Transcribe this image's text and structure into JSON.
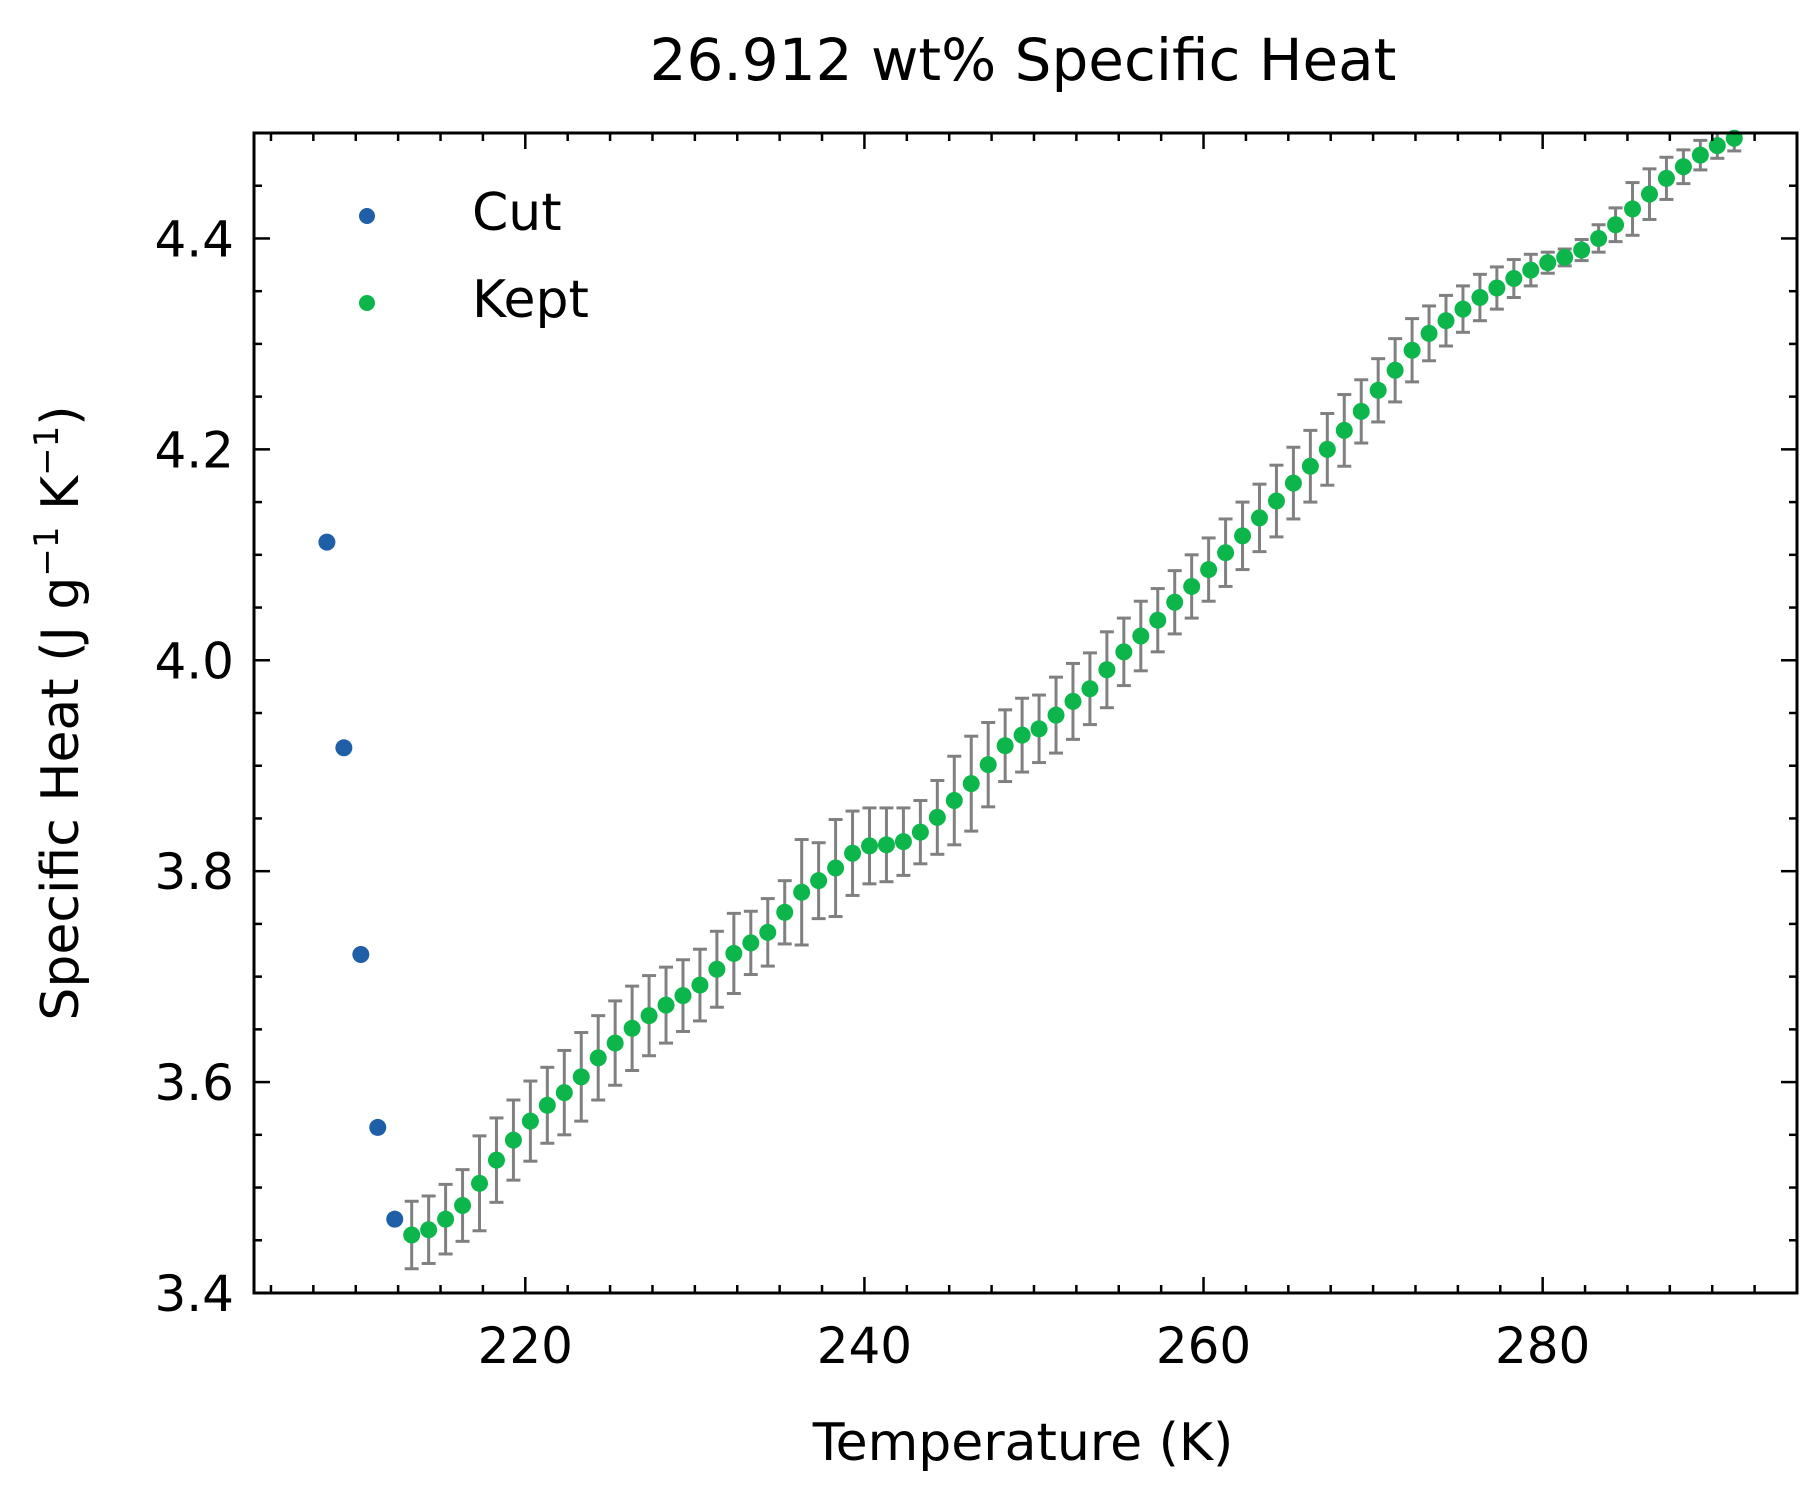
{
  "chart_data": {
    "type": "scatter",
    "title": "26.912 wt% Specific Heat",
    "xlabel": "Temperature (K)",
    "ylabel": {
      "base": "Specific Heat (J g",
      "sup1": "−1",
      "mid": " K",
      "sup2": "−1",
      "end": ")"
    },
    "xlim": [
      204,
      295
    ],
    "ylim": [
      3.4,
      4.5
    ],
    "xticks": [
      220,
      240,
      260,
      280
    ],
    "xtick_labels": [
      "220",
      "240",
      "260",
      "280"
    ],
    "yticks": [
      3.4,
      3.6,
      3.8,
      4.0,
      4.2,
      4.4
    ],
    "ytick_labels": [
      "3.4",
      "3.6",
      "3.8",
      "4.0",
      "4.2",
      "4.4"
    ],
    "legend_position": "top-left",
    "errorbar_color": "#808080",
    "series": [
      {
        "name": "Cut",
        "color": "#1f5fa8",
        "x": [
          208.3,
          209.3,
          210.3,
          211.3,
          212.3
        ],
        "y": [
          4.112,
          3.917,
          3.721,
          3.557,
          3.47
        ]
      },
      {
        "name": "Kept",
        "color": "#0cb64a",
        "x": [
          213.3,
          214.3,
          215.3,
          216.3,
          217.3,
          218.3,
          219.3,
          220.3,
          221.3,
          222.3,
          223.3,
          224.3,
          225.3,
          226.3,
          227.3,
          228.3,
          229.3,
          230.3,
          231.3,
          232.3,
          233.3,
          234.3,
          235.3,
          236.3,
          237.3,
          238.3,
          239.3,
          240.3,
          241.3,
          242.3,
          243.3,
          244.3,
          245.3,
          246.3,
          247.3,
          248.3,
          249.3,
          250.3,
          251.3,
          252.3,
          253.3,
          254.3,
          255.3,
          256.3,
          257.3,
          258.3,
          259.3,
          260.3,
          261.3,
          262.3,
          263.3,
          264.3,
          265.3,
          266.3,
          267.3,
          268.3,
          269.3,
          270.3,
          271.3,
          272.3,
          273.3,
          274.3,
          275.3,
          276.3,
          277.3,
          278.3,
          279.3,
          280.3,
          281.3,
          282.3,
          283.3,
          284.3,
          285.3,
          286.3,
          287.3,
          288.3,
          289.3,
          290.3,
          291.3
        ],
        "y": [
          3.455,
          3.46,
          3.47,
          3.483,
          3.504,
          3.526,
          3.545,
          3.563,
          3.578,
          3.59,
          3.605,
          3.623,
          3.637,
          3.651,
          3.663,
          3.673,
          3.682,
          3.692,
          3.707,
          3.722,
          3.732,
          3.742,
          3.761,
          3.78,
          3.791,
          3.803,
          3.817,
          3.824,
          3.825,
          3.828,
          3.837,
          3.851,
          3.867,
          3.883,
          3.901,
          3.919,
          3.929,
          3.935,
          3.948,
          3.961,
          3.973,
          3.991,
          4.008,
          4.023,
          4.038,
          4.055,
          4.07,
          4.086,
          4.102,
          4.118,
          4.135,
          4.151,
          4.168,
          4.184,
          4.2,
          4.218,
          4.236,
          4.256,
          4.275,
          4.294,
          4.31,
          4.322,
          4.333,
          4.344,
          4.353,
          4.362,
          4.37,
          4.377,
          4.382,
          4.389,
          4.4,
          4.413,
          4.428,
          4.442,
          4.457,
          4.468,
          4.479,
          4.488,
          4.495
        ],
        "err": [
          0.032,
          0.032,
          0.033,
          0.034,
          0.045,
          0.04,
          0.038,
          0.038,
          0.036,
          0.04,
          0.042,
          0.04,
          0.04,
          0.04,
          0.038,
          0.036,
          0.034,
          0.034,
          0.036,
          0.038,
          0.03,
          0.032,
          0.03,
          0.05,
          0.036,
          0.046,
          0.04,
          0.036,
          0.035,
          0.032,
          0.03,
          0.035,
          0.042,
          0.045,
          0.04,
          0.034,
          0.035,
          0.032,
          0.036,
          0.036,
          0.034,
          0.036,
          0.032,
          0.033,
          0.03,
          0.03,
          0.03,
          0.03,
          0.032,
          0.032,
          0.032,
          0.034,
          0.034,
          0.034,
          0.034,
          0.034,
          0.03,
          0.03,
          0.03,
          0.03,
          0.026,
          0.024,
          0.022,
          0.022,
          0.02,
          0.018,
          0.015,
          0.01,
          0.008,
          0.01,
          0.013,
          0.016,
          0.025,
          0.024,
          0.02,
          0.016,
          0.014,
          0.012,
          0.012
        ]
      }
    ]
  }
}
